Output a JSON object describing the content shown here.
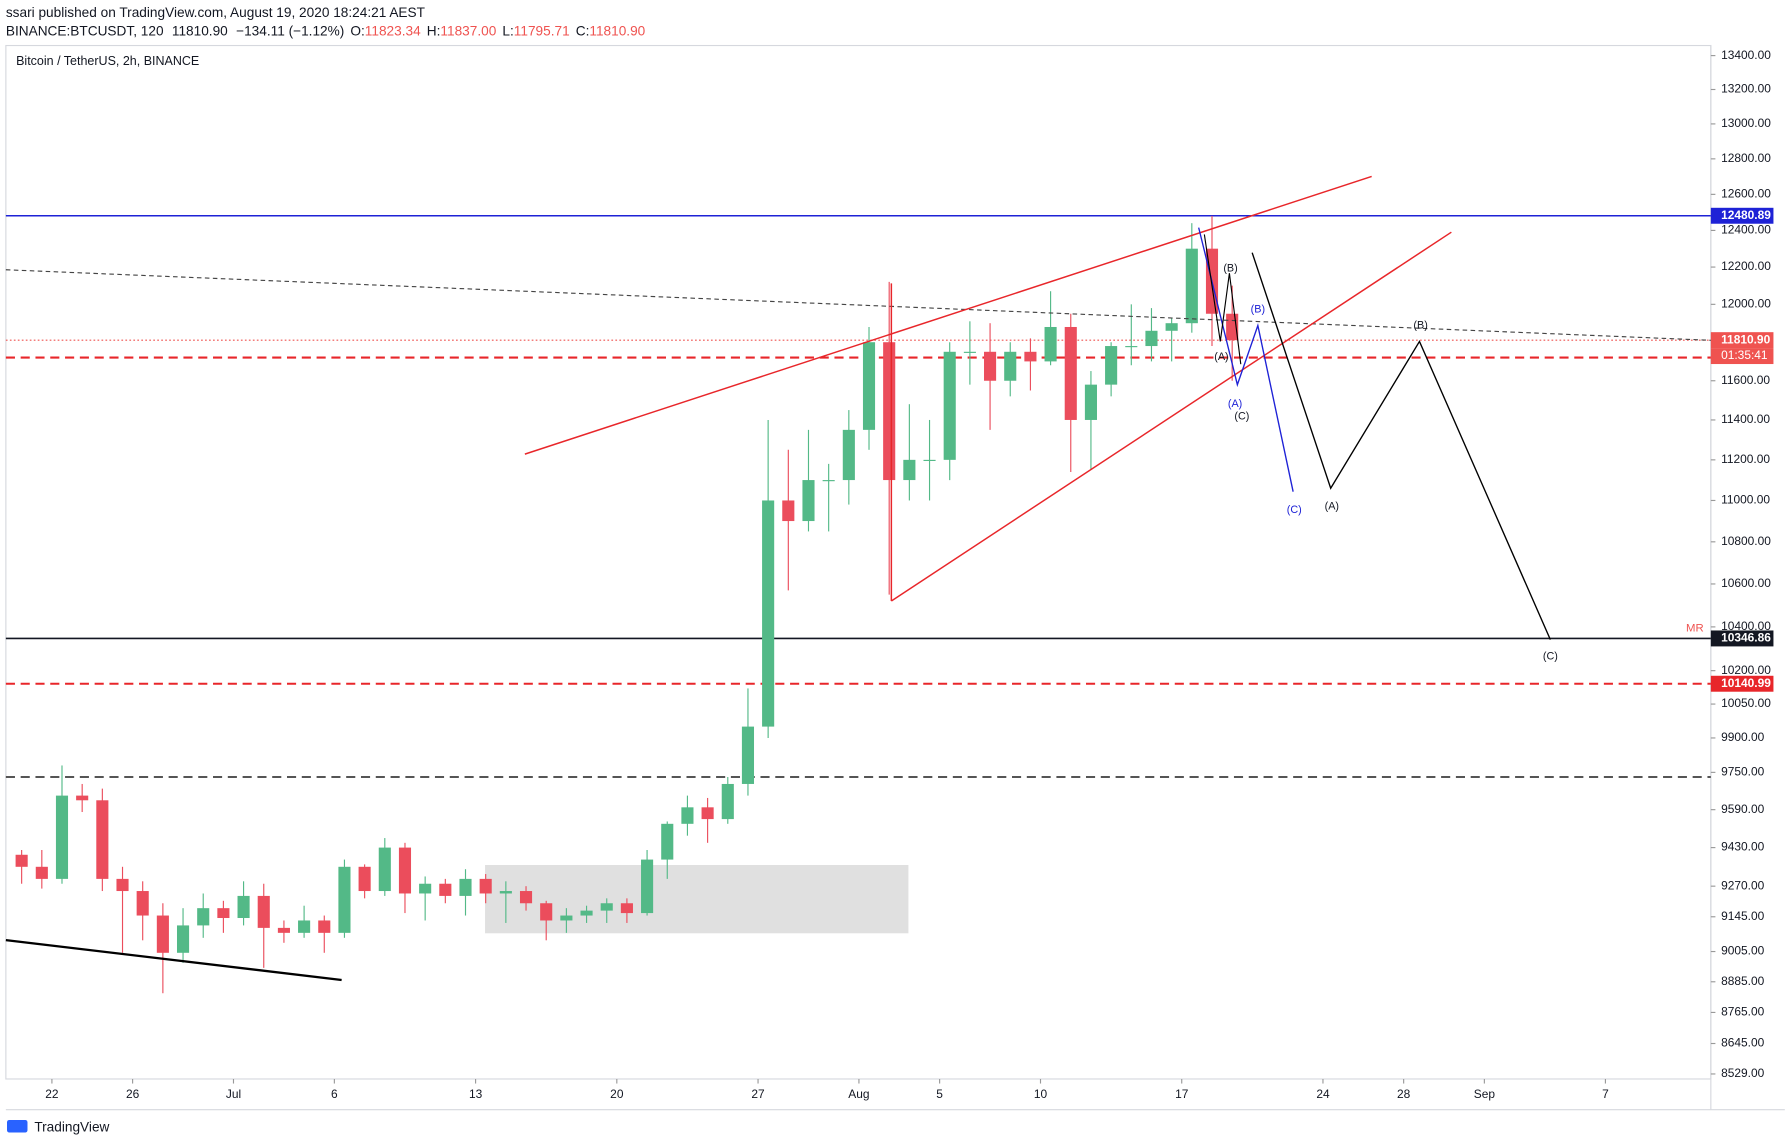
{
  "header": {
    "line1": "ssari published on TradingView.com, August 19, 2020 18:24:21 AEST",
    "symbol": "BINANCE:BTCUSDT, 120",
    "last": "11810.90",
    "change": "−134.11 (−1.12%)",
    "o_label": "O:",
    "o": "11823.34",
    "h_label": "H:",
    "h": "11837.00",
    "l_label": "L:",
    "l": "11795.71",
    "c_label": "C:",
    "c": "11810.90"
  },
  "footer": {
    "brand": "TradingView"
  },
  "chart_data": {
    "type": "candlestick",
    "title": "Bitcoin / TetherUS, 2h, BINANCE",
    "log_scale": true,
    "grid": false,
    "x": [
      "2020-06-20",
      "2020-06-21",
      "2020-06-22",
      "2020-06-23",
      "2020-06-24",
      "2020-06-25",
      "2020-06-26",
      "2020-06-27",
      "2020-06-28",
      "2020-06-29",
      "2020-06-30",
      "2020-07-01",
      "2020-07-02",
      "2020-07-03",
      "2020-07-04",
      "2020-07-05",
      "2020-07-06",
      "2020-07-07",
      "2020-07-08",
      "2020-07-09",
      "2020-07-10",
      "2020-07-11",
      "2020-07-12",
      "2020-07-13",
      "2020-07-14",
      "2020-07-15",
      "2020-07-16",
      "2020-07-17",
      "2020-07-18",
      "2020-07-19",
      "2020-07-20",
      "2020-07-21",
      "2020-07-22",
      "2020-07-23",
      "2020-07-24",
      "2020-07-25",
      "2020-07-26",
      "2020-07-27",
      "2020-07-28",
      "2020-07-29",
      "2020-07-30",
      "2020-07-31",
      "2020-08-01",
      "2020-08-02",
      "2020-08-03",
      "2020-08-04",
      "2020-08-05",
      "2020-08-06",
      "2020-08-07",
      "2020-08-08",
      "2020-08-09",
      "2020-08-10",
      "2020-08-11",
      "2020-08-12",
      "2020-08-13",
      "2020-08-14",
      "2020-08-15",
      "2020-08-16",
      "2020-08-17",
      "2020-08-18",
      "2020-08-19"
    ],
    "series": [
      {
        "up_color": "#53b987",
        "down_color": "#eb4d5c",
        "open": [
          9400,
          9350,
          9300,
          9650,
          9630,
          9300,
          9250,
          9150,
          9000,
          9110,
          9180,
          9140,
          9230,
          9100,
          9080,
          9130,
          9080,
          9350,
          9250,
          9430,
          9240,
          9280,
          9230,
          9300,
          9240,
          9250,
          9200,
          9130,
          9150,
          9170,
          9200,
          9160,
          9380,
          9530,
          9600,
          9550,
          9700,
          9950,
          11000,
          10900,
          11100,
          11100,
          11350,
          11800,
          11100,
          11200,
          11200,
          11750,
          11750,
          11600,
          11750,
          11700,
          11880,
          11400,
          11580,
          11780,
          11780,
          11860,
          11900,
          12300,
          11950
        ],
        "high": [
          9420,
          9420,
          9780,
          9700,
          9680,
          9350,
          9290,
          9200,
          9180,
          9240,
          9210,
          9290,
          9280,
          9130,
          9190,
          9150,
          9380,
          9360,
          9470,
          9450,
          9310,
          9300,
          9340,
          9320,
          9290,
          9270,
          9210,
          9180,
          9190,
          9220,
          9220,
          9420,
          9540,
          9650,
          9640,
          9730,
          10120,
          11400,
          11250,
          11350,
          11180,
          11450,
          11880,
          12120,
          11480,
          11400,
          11800,
          11910,
          11900,
          11800,
          11820,
          12070,
          11950,
          11650,
          11800,
          12000,
          11980,
          11930,
          12440,
          12480,
          12100
        ],
        "low": [
          9280,
          9260,
          9280,
          9580,
          9250,
          9000,
          9050,
          8840,
          8960,
          9060,
          9080,
          9110,
          8940,
          9040,
          9060,
          9000,
          9060,
          9220,
          9230,
          9160,
          9130,
          9200,
          9150,
          9200,
          9120,
          9170,
          9050,
          9080,
          9120,
          9120,
          9120,
          9150,
          9300,
          9480,
          9450,
          9530,
          9650,
          9900,
          10570,
          10850,
          10850,
          10980,
          11250,
          10550,
          11000,
          11000,
          11100,
          11580,
          11350,
          11520,
          11550,
          11680,
          11140,
          11150,
          11520,
          11680,
          11700,
          11700,
          11850,
          11780,
          11600
        ],
        "close": [
          9350,
          9300,
          9650,
          9630,
          9300,
          9250,
          9150,
          9000,
          9110,
          9180,
          9140,
          9230,
          9100,
          9080,
          9130,
          9080,
          9350,
          9250,
          9430,
          9240,
          9280,
          9230,
          9300,
          9240,
          9250,
          9200,
          9130,
          9150,
          9170,
          9200,
          9160,
          9380,
          9530,
          9600,
          9550,
          9700,
          9950,
          11000,
          10900,
          11100,
          11100,
          11350,
          11800,
          11100,
          11200,
          11200,
          11750,
          11750,
          11600,
          11750,
          11700,
          11880,
          11400,
          11580,
          11780,
          11780,
          11860,
          11900,
          12300,
          11950,
          11810.9
        ]
      }
    ],
    "xlim": [
      "2020-06-20",
      "2020-09-12"
    ],
    "xticks": [
      {
        "value": "2020-06-22",
        "label": "22"
      },
      {
        "value": "2020-06-26",
        "label": "26"
      },
      {
        "value": "2020-07-01",
        "label": "Jul"
      },
      {
        "value": "2020-07-06",
        "label": "6"
      },
      {
        "value": "2020-07-13",
        "label": "13"
      },
      {
        "value": "2020-07-20",
        "label": "20"
      },
      {
        "value": "2020-07-27",
        "label": "27"
      },
      {
        "value": "2020-08-01",
        "label": "Aug"
      },
      {
        "value": "2020-08-05",
        "label": "5"
      },
      {
        "value": "2020-08-10",
        "label": "10"
      },
      {
        "value": "2020-08-17",
        "label": "17"
      },
      {
        "value": "2020-08-24",
        "label": "24"
      },
      {
        "value": "2020-08-28",
        "label": "28"
      },
      {
        "value": "2020-09-01",
        "label": "Sep"
      },
      {
        "value": "2020-09-07",
        "label": "7"
      }
    ],
    "ylim": [
      8510,
      13460
    ],
    "yticks": [
      {
        "value": 13400,
        "label": "13400.00"
      },
      {
        "value": 13200,
        "label": "13200.00"
      },
      {
        "value": 13000,
        "label": "13000.00"
      },
      {
        "value": 12800,
        "label": "12800.00"
      },
      {
        "value": 12600,
        "label": "12600.00"
      },
      {
        "value": 12400,
        "label": "12400.00"
      },
      {
        "value": 12200,
        "label": "12200.00"
      },
      {
        "value": 12000,
        "label": "12000.00"
      },
      {
        "value": 11600,
        "label": "11600.00"
      },
      {
        "value": 11400,
        "label": "11400.00"
      },
      {
        "value": 11200,
        "label": "11200.00"
      },
      {
        "value": 11000,
        "label": "11000.00"
      },
      {
        "value": 10800,
        "label": "10800.00"
      },
      {
        "value": 10600,
        "label": "10600.00"
      },
      {
        "value": 10400,
        "label": "10400.00"
      },
      {
        "value": 10200,
        "label": "10200.00"
      },
      {
        "value": 10050,
        "label": "10050.00"
      },
      {
        "value": 9900,
        "label": "9900.00"
      },
      {
        "value": 9750,
        "label": "9750.00"
      },
      {
        "value": 9590,
        "label": "9590.00"
      },
      {
        "value": 9430,
        "label": "9430.00"
      },
      {
        "value": 9270,
        "label": "9270.00"
      },
      {
        "value": 9145,
        "label": "9145.00"
      },
      {
        "value": 9005,
        "label": "9005.00"
      },
      {
        "value": 8885,
        "label": "8885.00"
      },
      {
        "value": 8765,
        "label": "8765.00"
      },
      {
        "value": 8645,
        "label": "8645.00"
      },
      {
        "value": 8529,
        "label": "8529.00"
      }
    ],
    "price_lines": [
      {
        "value": 12480.89,
        "color": "#1e22d6",
        "style": "solid",
        "axis_label": true
      },
      {
        "value": 11810.9,
        "label": "11810.90",
        "color": "#ef5350",
        "style": "dotted",
        "axis_label": true,
        "countdown": "01:35:41"
      },
      {
        "value": 11720,
        "color": "#e8262a",
        "style": "dashed",
        "axis_label": false
      },
      {
        "value": 10346.86,
        "color": "#131722",
        "style": "solid",
        "axis_label": true
      },
      {
        "value": 10140.99,
        "color": "#e8262a",
        "style": "dashed",
        "axis_label": true
      },
      {
        "value": 9730,
        "color": "#555555",
        "style": "dashed",
        "axis_label": false
      }
    ],
    "annotations": [
      "(B)",
      "(A)",
      "(A)",
      "(C)",
      "(B)",
      "(C)",
      "(A)",
      "(B)",
      "(C)",
      "MR"
    ]
  }
}
